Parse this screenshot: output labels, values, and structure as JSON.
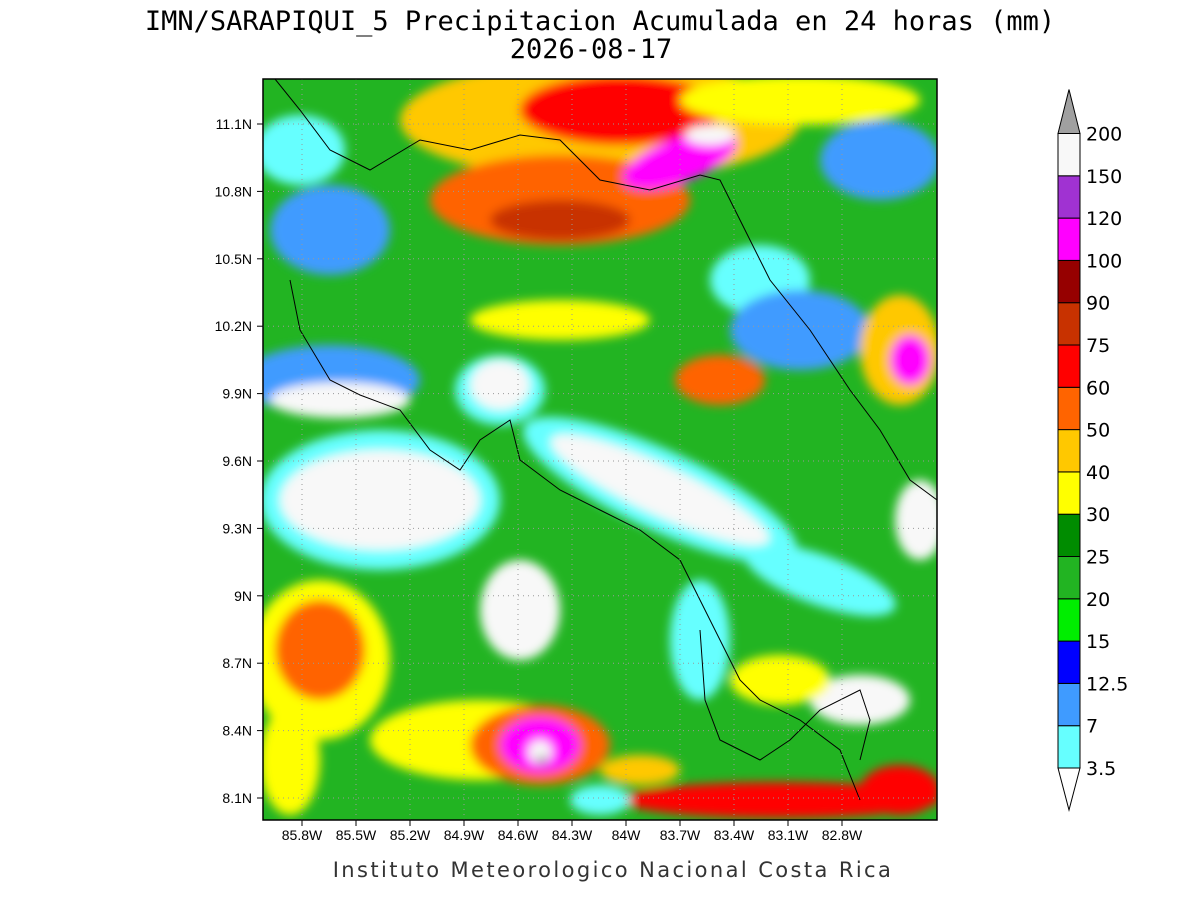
{
  "title": "IMN/SARAPIQUI_5 Precipitacion Acumulada en 24 horas (mm)",
  "date": "2026-08-17",
  "map": {
    "lat_labels": [
      "11.1N",
      "10.8N",
      "10.5N",
      "10.2N",
      "9.9N",
      "9.6N",
      "9.3N",
      "9N",
      "8.7N",
      "8.4N",
      "8.1N"
    ],
    "lon_labels": [
      "85.8W",
      "85.5W",
      "85.2W",
      "84.9W",
      "84.6W",
      "84.3W",
      "84W",
      "83.7W",
      "83.4W",
      "83.1W",
      "82.8W"
    ]
  },
  "colorbar": {
    "levels": [
      "3.5",
      "7",
      "12.5",
      "15",
      "20",
      "25",
      "30",
      "40",
      "50",
      "60",
      "75",
      "90",
      "100",
      "120",
      "150",
      "200"
    ],
    "colors": [
      "#66ffff",
      "#3f9bff",
      "#0000ff",
      "#00ee00",
      "#22b422",
      "#008c00",
      "#ffff00",
      "#ffc800",
      "#ff6400",
      "#ff0000",
      "#c83200",
      "#960000",
      "#ff00ff",
      "#a032d2",
      "#f8f8f8"
    ],
    "below_color": "#ffffff",
    "above_color": "#a0a0a0"
  },
  "footer": "Instituto Meteorologico Nacional Costa Rica"
}
